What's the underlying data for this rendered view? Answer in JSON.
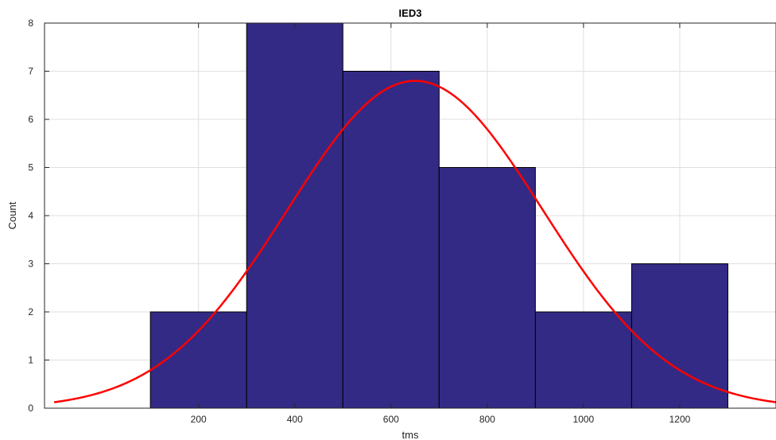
{
  "chart_data": {
    "type": "bar",
    "title": "IED3",
    "xlabel": "tms",
    "ylabel": "Count",
    "bins": [
      {
        "x0": 100,
        "x1": 300,
        "count": 2
      },
      {
        "x0": 300,
        "x1": 500,
        "count": 8
      },
      {
        "x0": 500,
        "x1": 700,
        "count": 7
      },
      {
        "x0": 700,
        "x1": 900,
        "count": 5
      },
      {
        "x0": 900,
        "x1": 1100,
        "count": 2
      },
      {
        "x0": 1100,
        "x1": 1300,
        "count": 3
      }
    ],
    "xlim": [
      -120,
      1400
    ],
    "ylim": [
      0,
      8
    ],
    "xticks": [
      200,
      400,
      600,
      800,
      1000,
      1200
    ],
    "yticks": [
      0,
      1,
      2,
      3,
      4,
      5,
      6,
      7,
      8
    ],
    "grid": true,
    "fit_curve": {
      "type": "normal",
      "mean": 650,
      "sigma": 265,
      "peak": 6.8
    },
    "colors": {
      "bar_fill": "#332A85",
      "bar_edge": "#000000",
      "curve": "#FF0000",
      "grid": "#DFDFDF"
    }
  }
}
